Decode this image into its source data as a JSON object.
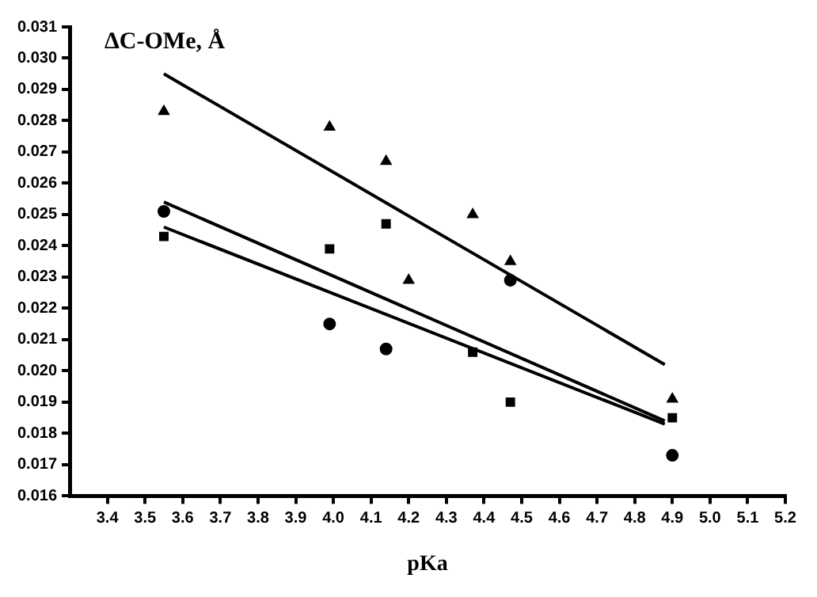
{
  "chart_data": {
    "type": "scatter",
    "ylabel": "ΔC-OMe, Å",
    "xlabel": "pKa",
    "xlim": [
      3.3,
      5.2
    ],
    "xticks": [
      {
        "value": 3.4,
        "label": "3.4"
      },
      {
        "value": 3.5,
        "label": "3.5"
      },
      {
        "value": 3.6,
        "label": "3.6"
      },
      {
        "value": 3.7,
        "label": "3.7"
      },
      {
        "value": 3.8,
        "label": "3.8"
      },
      {
        "value": 3.9,
        "label": "3.9"
      },
      {
        "value": 4.0,
        "label": "4.0"
      },
      {
        "value": 4.1,
        "label": "4.1"
      },
      {
        "value": 4.2,
        "label": "4.2"
      },
      {
        "value": 4.3,
        "label": "4.3"
      },
      {
        "value": 4.4,
        "label": "4.4"
      },
      {
        "value": 4.5,
        "label": "4.5"
      },
      {
        "value": 4.6,
        "label": "4.6"
      },
      {
        "value": 4.7,
        "label": "4.7"
      },
      {
        "value": 4.8,
        "label": "4.8"
      },
      {
        "value": 4.9,
        "label": "4.9"
      },
      {
        "value": 5.0,
        "label": "5.0"
      },
      {
        "value": 5.1,
        "label": "5.1"
      },
      {
        "value": 5.2,
        "label": "5.2"
      }
    ],
    "ylim": [
      0.016,
      0.031
    ],
    "yticks": [
      {
        "value": 0.016,
        "label": "0.016"
      },
      {
        "value": 0.017,
        "label": "0.017"
      },
      {
        "value": 0.018,
        "label": "0.018"
      },
      {
        "value": 0.019,
        "label": "0.019"
      },
      {
        "value": 0.02,
        "label": "0.020"
      },
      {
        "value": 0.021,
        "label": "0.021"
      },
      {
        "value": 0.022,
        "label": "0.022"
      },
      {
        "value": 0.023,
        "label": "0.023"
      },
      {
        "value": 0.024,
        "label": "0.024"
      },
      {
        "value": 0.025,
        "label": "0.025"
      },
      {
        "value": 0.026,
        "label": "0.026"
      },
      {
        "value": 0.027,
        "label": "0.027"
      },
      {
        "value": 0.028,
        "label": "0.028"
      },
      {
        "value": 0.029,
        "label": "0.029"
      },
      {
        "value": 0.03,
        "label": "0.030"
      },
      {
        "value": 0.031,
        "label": "0.031"
      }
    ],
    "grid": false,
    "legend": false,
    "series": [
      {
        "marker": "triangle",
        "color": "#000000",
        "x": [
          3.55,
          3.99,
          4.14,
          4.2,
          4.37,
          4.47,
          4.9
        ],
        "values": [
          0.0283,
          0.0278,
          0.0267,
          0.0229,
          0.025,
          0.0235,
          0.0191
        ]
      },
      {
        "marker": "circle",
        "color": "#000000",
        "x": [
          3.55,
          3.99,
          4.14,
          4.47,
          4.9
        ],
        "values": [
          0.0251,
          0.0215,
          0.0207,
          0.0229,
          0.0173
        ]
      },
      {
        "marker": "square",
        "color": "#000000",
        "x": [
          3.55,
          3.99,
          4.14,
          4.37,
          4.47,
          4.9
        ],
        "values": [
          0.0243,
          0.0239,
          0.0247,
          0.0206,
          0.019,
          0.0185
        ]
      },
      {
        "type": "line",
        "marker": "none",
        "line_style": "solid",
        "color": "#000000",
        "x": [
          3.55,
          4.88
        ],
        "values": [
          0.0295,
          0.0202
        ]
      },
      {
        "type": "line",
        "marker": "none",
        "line_style": "solid",
        "color": "#000000",
        "x": [
          3.55,
          4.88
        ],
        "values": [
          0.0254,
          0.0184
        ]
      },
      {
        "type": "line",
        "marker": "none",
        "line_style": "solid",
        "color": "#000000",
        "x": [
          3.55,
          4.88
        ],
        "values": [
          0.0246,
          0.0183
        ]
      }
    ]
  }
}
